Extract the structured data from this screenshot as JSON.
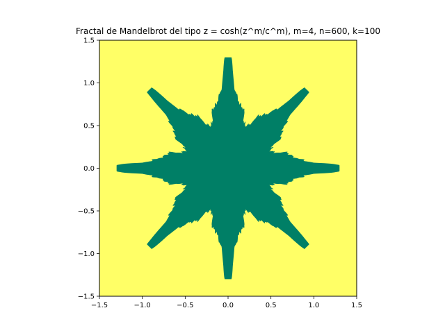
{
  "chart_data": {
    "type": "heatmap",
    "title": "Fractal de Mandelbrot del tipo z = cosh(z^m/c^m), m=4, n=600, k=100",
    "xlabel": "",
    "ylabel": "",
    "xlim": [
      -1.5,
      1.5
    ],
    "ylim": [
      -1.5,
      1.5
    ],
    "xticks": [
      -1.5,
      -1.0,
      -0.5,
      0.0,
      0.5,
      1.0,
      1.5
    ],
    "yticks": [
      -1.5,
      -1.0,
      -0.5,
      0.0,
      0.5,
      1.0,
      1.5
    ],
    "xtick_labels": [
      "−1.5",
      "−1.0",
      "−0.5",
      "0.0",
      "0.5",
      "1.0",
      "1.5"
    ],
    "ytick_labels": [
      "−1.5",
      "−1.0",
      "−0.5",
      "0.0",
      "0.5",
      "1.0",
      "1.5"
    ],
    "grid": false,
    "legend": "none",
    "colors": {
      "inside": "#007f66",
      "outside": "#ffff66"
    },
    "fractal": {
      "formula": "z = cosh(z^m/c^m)",
      "m": 4,
      "n": 600,
      "k": 100,
      "symmetry": "8-fold",
      "max_extent": 1.3
    }
  }
}
